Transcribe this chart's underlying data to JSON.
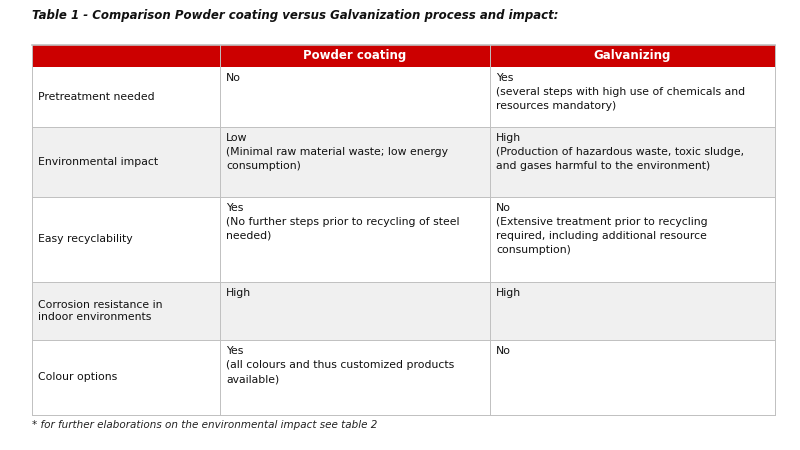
{
  "title": "Table 1 - Comparison Powder coating versus Galvanization process and impact:",
  "footer": "* for further elaborations on the environmental impact see table 2",
  "header_bg": "#cc0000",
  "header_text_color": "#ffffff",
  "border_color": "#c0c0c0",
  "col_headers": [
    "Powder coating",
    "Galvanizing"
  ],
  "rows": [
    {
      "label": "Pretreatment needed",
      "powder": "No",
      "galv": "Yes\n(several steps with high use of chemicals and\nresources mandatory)",
      "bg": "#ffffff"
    },
    {
      "label": "Environmental impact",
      "powder": "Low\n(Minimal raw material waste; low energy\nconsumption)",
      "galv": "High\n(Production of hazardous waste, toxic sludge,\nand gases harmful to the environment)",
      "bg": "#f0f0f0"
    },
    {
      "label": "Easy recyclability",
      "powder": "Yes\n(No further steps prior to recycling of steel\nneeded)",
      "galv": "No\n(Extensive treatment prior to recycling\nrequired, including additional resource\nconsumption)",
      "bg": "#ffffff"
    },
    {
      "label": "Corrosion resistance in\nindoor environments",
      "powder": "High",
      "galv": "High",
      "bg": "#f0f0f0"
    },
    {
      "label": "Colour options",
      "powder": "Yes\n(all colours and thus customized products\navailable)",
      "galv": "No",
      "bg": "#ffffff"
    }
  ],
  "fig_width": 8.0,
  "fig_height": 4.5,
  "dpi": 100
}
